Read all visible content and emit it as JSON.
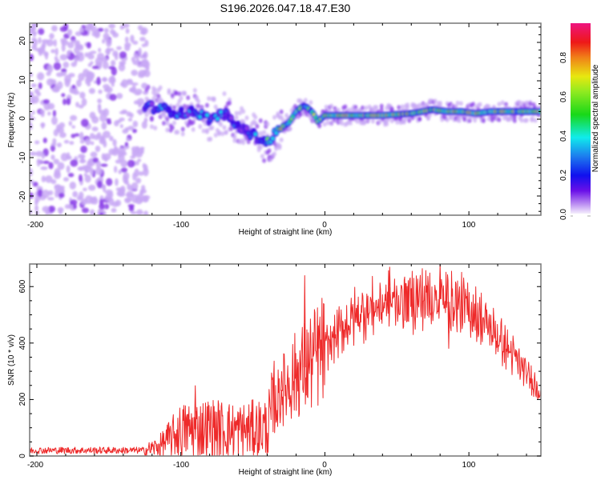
{
  "title": "S196.2026.047.18.47.E30",
  "chart_data": [
    {
      "type": "heatmap",
      "name": "spectrogram",
      "xlabel": "Height of straight line (km)",
      "ylabel": "Frequency (Hz)",
      "xlim": [
        -205,
        150
      ],
      "ylim": [
        -25,
        25
      ],
      "xticks": [
        "-200",
        "-100",
        "0",
        "100"
      ],
      "yticks": [
        "-20",
        "-10",
        "0",
        "10",
        "20"
      ],
      "ridge": {
        "x": [
          -125,
          -110,
          -100,
          -90,
          -80,
          -70,
          -60,
          -50,
          -45,
          -40,
          -35,
          -30,
          -25,
          -20,
          -15,
          -12,
          -8,
          -5,
          -3,
          0,
          20,
          40,
          60,
          75,
          85,
          95,
          105,
          115,
          150
        ],
        "y": [
          3.5,
          2.5,
          1.5,
          2,
          0,
          1.5,
          -2,
          -4,
          -5,
          -6,
          -4,
          -2,
          -1,
          2,
          3.5,
          3,
          1.5,
          -0.5,
          0,
          1,
          1,
          1,
          1.5,
          2.5,
          2,
          2,
          1.5,
          2,
          2
        ]
      },
      "colorbar": {
        "label": "Normalized spectral amplitude",
        "range": [
          0,
          0.97
        ],
        "ticks": [
          "0.0",
          "0.2",
          "0.4",
          "0.6",
          "0.8"
        ]
      }
    },
    {
      "type": "line",
      "name": "snr",
      "xlabel": "Height of straight line (km)",
      "ylabel": "SNR (10 * v/v)",
      "xlim": [
        -205,
        150
      ],
      "ylim": [
        0,
        680
      ],
      "xticks": [
        "-200",
        "-100",
        "0",
        "100"
      ],
      "yticks": [
        "0",
        "200",
        "400",
        "600"
      ],
      "color": "#ee2a2a",
      "envelope": {
        "x": [
          -205,
          -125,
          -115,
          -100,
          -80,
          -60,
          -40,
          -35,
          -30,
          -20,
          -10,
          0,
          10,
          20,
          30,
          50,
          70,
          80,
          90,
          100,
          110,
          120,
          130,
          140,
          150
        ],
        "y": [
          20,
          20,
          35,
          90,
          100,
          90,
          100,
          170,
          230,
          290,
          330,
          380,
          440,
          490,
          520,
          550,
          560,
          555,
          540,
          520,
          480,
          420,
          360,
          290,
          230
        ]
      },
      "spikes": [
        {
          "x": -14,
          "y": 640
        },
        {
          "x": 80,
          "y": 680
        },
        {
          "x": 45,
          "y": 670
        },
        {
          "x": -30,
          "y": 300
        },
        {
          "x": -90,
          "y": 250
        },
        {
          "x": 86,
          "y": 380
        }
      ]
    }
  ]
}
